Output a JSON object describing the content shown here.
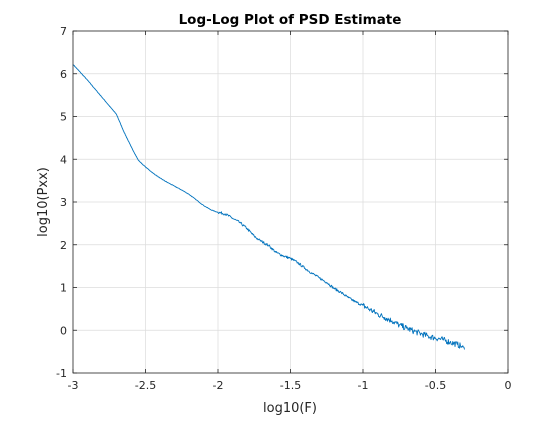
{
  "chart_data": {
    "type": "line",
    "title": "Log-Log Plot of PSD Estimate",
    "xlabel": "log10(F)",
    "ylabel": "log10(Pxx)",
    "xlim": [
      -3,
      0
    ],
    "ylim": [
      -1,
      7
    ],
    "xticks": [
      -3,
      -2.5,
      -2,
      -1.5,
      -1,
      -0.5,
      0
    ],
    "xtick_labels": [
      "-3",
      "-2.5",
      "-2",
      "-1.5",
      "-1",
      "-0.5",
      "0"
    ],
    "yticks": [
      -1,
      0,
      1,
      2,
      3,
      4,
      5,
      6,
      7
    ],
    "ytick_labels": [
      "-1",
      "0",
      "1",
      "2",
      "3",
      "4",
      "5",
      "6",
      "7"
    ],
    "grid": true,
    "box": true,
    "line_color": "#0072BD",
    "series": [
      {
        "x": [
          -3.0,
          -2.9,
          -2.8,
          -2.7,
          -2.65,
          -2.6,
          -2.55,
          -2.52,
          -2.5,
          -2.45,
          -2.4,
          -2.35,
          -2.3,
          -2.25,
          -2.2,
          -2.15,
          -2.1,
          -2.05,
          -2.02,
          -2.0,
          -1.95,
          -1.9,
          -1.85,
          -1.8,
          -1.75,
          -1.72,
          -1.7,
          -1.65,
          -1.6,
          -1.55,
          -1.5,
          -1.45,
          -1.4,
          -1.35,
          -1.3,
          -1.25,
          -1.2,
          -1.15,
          -1.1,
          -1.05,
          -1.0,
          -0.95,
          -0.9,
          -0.85,
          -0.8,
          -0.75,
          -0.7,
          -0.65,
          -0.6,
          -0.55,
          -0.5,
          -0.45,
          -0.4,
          -0.35,
          -0.32,
          -0.3
        ],
        "y": [
          6.22,
          5.85,
          5.45,
          5.05,
          4.65,
          4.3,
          3.98,
          3.88,
          3.82,
          3.68,
          3.56,
          3.46,
          3.37,
          3.28,
          3.18,
          3.05,
          2.92,
          2.82,
          2.78,
          2.76,
          2.72,
          2.62,
          2.52,
          2.38,
          2.2,
          2.12,
          2.08,
          1.98,
          1.82,
          1.74,
          1.68,
          1.58,
          1.45,
          1.33,
          1.22,
          1.12,
          0.98,
          0.88,
          0.76,
          0.66,
          0.58,
          0.48,
          0.38,
          0.3,
          0.22,
          0.12,
          0.05,
          -0.02,
          -0.08,
          -0.14,
          -0.18,
          -0.22,
          -0.28,
          -0.33,
          -0.38,
          -0.45
        ]
      }
    ]
  }
}
